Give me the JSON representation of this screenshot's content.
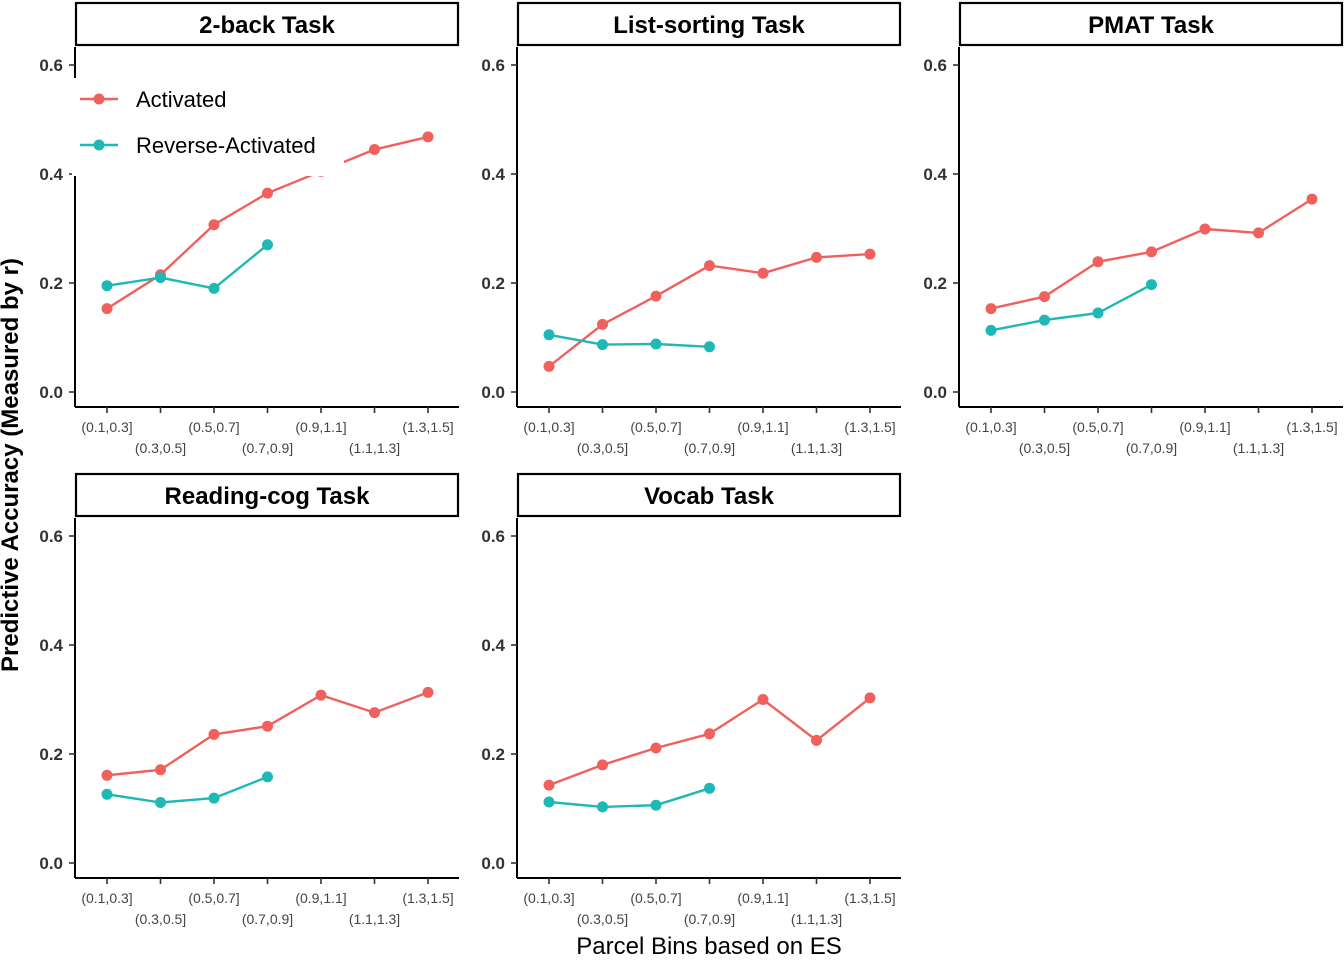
{
  "chart_data": {
    "type": "line",
    "xlabel": "Parcel Bins based on ES",
    "ylabel": "Predictive Accuracy (Measured by r)",
    "ylim": [
      0,
      0.6
    ],
    "yticks": [
      "0.0",
      "0.2",
      "0.4",
      "0.6"
    ],
    "categories": [
      "(0.1,0.3]",
      "(0.3,0.5]",
      "(0.5,0.7]",
      "(0.7,0.9]",
      "(0.9,1.1]",
      "(1.1,1.3]",
      "(1.3,1.5]"
    ],
    "grid": false,
    "legend": {
      "placement": "top-left (inside 2-back Task panel)",
      "entries": [
        {
          "name": "Activated",
          "color": "#F0615E"
        },
        {
          "name": "Reverse-Activated",
          "color": "#1FB8B6"
        }
      ]
    },
    "panels": [
      {
        "title": "2-back Task",
        "series": [
          {
            "name": "Activated",
            "values": [
              0.153,
              0.215,
              0.307,
              0.365,
              0.405,
              0.445,
              0.468
            ]
          },
          {
            "name": "Reverse-Activated",
            "values": [
              0.195,
              0.21,
              0.19,
              0.27,
              null,
              null,
              null
            ]
          }
        ]
      },
      {
        "title": "List-sorting Task",
        "series": [
          {
            "name": "Activated",
            "values": [
              0.047,
              0.124,
              0.176,
              0.232,
              0.218,
              0.247,
              0.253
            ]
          },
          {
            "name": "Reverse-Activated",
            "values": [
              0.105,
              0.087,
              0.088,
              0.083,
              null,
              null,
              null
            ]
          }
        ]
      },
      {
        "title": "PMAT Task",
        "series": [
          {
            "name": "Activated",
            "values": [
              0.153,
              0.175,
              0.239,
              0.257,
              0.299,
              0.292,
              0.354
            ]
          },
          {
            "name": "Reverse-Activated",
            "values": [
              0.113,
              0.132,
              0.145,
              0.197,
              null,
              null,
              null
            ]
          }
        ]
      },
      {
        "title": "Reading-cog Task",
        "series": [
          {
            "name": "Activated",
            "values": [
              0.161,
              0.171,
              0.236,
              0.251,
              0.308,
              0.276,
              0.313
            ]
          },
          {
            "name": "Reverse-Activated",
            "values": [
              0.126,
              0.111,
              0.119,
              0.158,
              null,
              null,
              null
            ]
          }
        ]
      },
      {
        "title": "Vocab Task",
        "series": [
          {
            "name": "Activated",
            "values": [
              0.143,
              0.18,
              0.211,
              0.237,
              0.3,
              0.225,
              0.303
            ]
          },
          {
            "name": "Reverse-Activated",
            "values": [
              0.112,
              0.103,
              0.106,
              0.137,
              null,
              null,
              null
            ]
          }
        ]
      }
    ]
  }
}
